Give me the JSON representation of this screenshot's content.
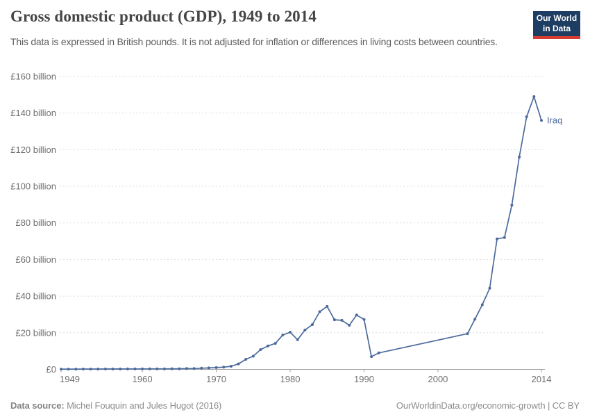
{
  "header": {
    "title": "Gross domestic product (GDP), 1949 to 2014",
    "subtitle": "This data is expressed in British pounds. It is not adjusted for inflation or differences in living costs between countries."
  },
  "logo": {
    "line1": "Our World",
    "line2": "in Data",
    "bg_color": "#1d3d63",
    "stripe_color": "#d73c32"
  },
  "chart_data": {
    "type": "line",
    "title": "Gross domestic product (GDP), 1949 to 2014",
    "xlabel": "",
    "ylabel": "",
    "unit": "British pounds (billions)",
    "xlim": [
      1949,
      2014
    ],
    "ylim": [
      0,
      160
    ],
    "grid": "horizontal-dashed",
    "legend_position": "end-of-line-label",
    "line_color": "#4c6a9c",
    "x_ticks": [
      1949,
      1960,
      1970,
      1980,
      1990,
      2000,
      2014
    ],
    "y_ticks": [
      {
        "value": 0,
        "label": "£0"
      },
      {
        "value": 20,
        "label": "£20 billion"
      },
      {
        "value": 40,
        "label": "£40 billion"
      },
      {
        "value": 60,
        "label": "£60 billion"
      },
      {
        "value": 80,
        "label": "£80 billion"
      },
      {
        "value": 100,
        "label": "£100 billion"
      },
      {
        "value": 120,
        "label": "£120 billion"
      },
      {
        "value": 140,
        "label": "£140 billion"
      },
      {
        "value": 160,
        "label": "£160 billion"
      }
    ],
    "series": [
      {
        "name": "Iraq",
        "points": [
          [
            1949,
            0.15
          ],
          [
            1950,
            0.16
          ],
          [
            1951,
            0.17
          ],
          [
            1952,
            0.18
          ],
          [
            1953,
            0.19
          ],
          [
            1954,
            0.2
          ],
          [
            1955,
            0.21
          ],
          [
            1956,
            0.22
          ],
          [
            1957,
            0.24
          ],
          [
            1958,
            0.25
          ],
          [
            1959,
            0.27
          ],
          [
            1960,
            0.28
          ],
          [
            1961,
            0.3
          ],
          [
            1962,
            0.3
          ],
          [
            1963,
            0.32
          ],
          [
            1964,
            0.33
          ],
          [
            1965,
            0.35
          ],
          [
            1966,
            0.45
          ],
          [
            1967,
            0.45
          ],
          [
            1968,
            0.65
          ],
          [
            1969,
            0.8
          ],
          [
            1970,
            1.0
          ],
          [
            1971,
            1.2
          ],
          [
            1972,
            1.7
          ],
          [
            1973,
            3.0
          ],
          [
            1974,
            5.5
          ],
          [
            1975,
            7.2
          ],
          [
            1976,
            10.8
          ],
          [
            1977,
            12.8
          ],
          [
            1978,
            14.2
          ],
          [
            1979,
            18.8
          ],
          [
            1980,
            20.3
          ],
          [
            1981,
            16.2
          ],
          [
            1982,
            21.5
          ],
          [
            1983,
            24.5
          ],
          [
            1984,
            31.5
          ],
          [
            1985,
            34.4
          ],
          [
            1986,
            27.1
          ],
          [
            1987,
            26.8
          ],
          [
            1988,
            24.1
          ],
          [
            1989,
            29.7
          ],
          [
            1990,
            27.3
          ],
          [
            1991,
            7.0
          ],
          [
            1992,
            9.0
          ],
          [
            2004,
            19.5
          ],
          [
            2005,
            27.4
          ],
          [
            2006,
            35.3
          ],
          [
            2007,
            44.3
          ],
          [
            2008,
            71.3
          ],
          [
            2009,
            72.0
          ],
          [
            2010,
            89.7
          ],
          [
            2011,
            116
          ],
          [
            2012,
            138
          ],
          [
            2013,
            149
          ],
          [
            2014,
            136
          ]
        ]
      }
    ]
  },
  "footer": {
    "source_label": "Data source:",
    "source_value": " Michel Fouquin and Jules Hugot (2016)",
    "credit": "OurWorldinData.org/economic-growth | CC BY"
  }
}
